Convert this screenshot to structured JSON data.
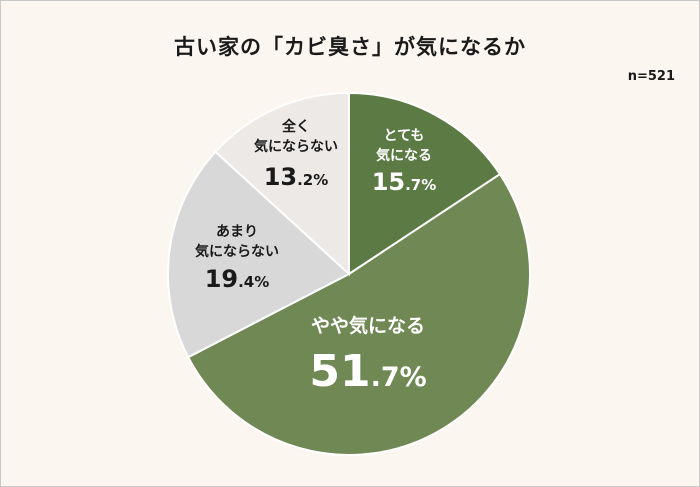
{
  "title": "古い家の「カビ臭さ」が気になるか",
  "sample": "n=521",
  "chart_data": {
    "type": "pie",
    "title": "古い家の「カビ臭さ」が気になるか",
    "slices": [
      {
        "label_lines": [
          "とても",
          "気になる"
        ],
        "value": 15.7,
        "color": "#5b7a44",
        "text_color": "#ffffff"
      },
      {
        "label_lines": [
          "やや気になる"
        ],
        "value": 51.7,
        "color": "#6f8854",
        "text_color": "#ffffff"
      },
      {
        "label_lines": [
          "あまり",
          "気にならない"
        ],
        "value": 19.4,
        "color": "#d9d8d9",
        "text_color": "#1a1a1a"
      },
      {
        "label_lines": [
          "全く",
          "気にならない"
        ],
        "value": 13.2,
        "color": "#ece9e7",
        "text_color": "#1a1a1a"
      }
    ],
    "unit": "%",
    "legend": "none"
  }
}
